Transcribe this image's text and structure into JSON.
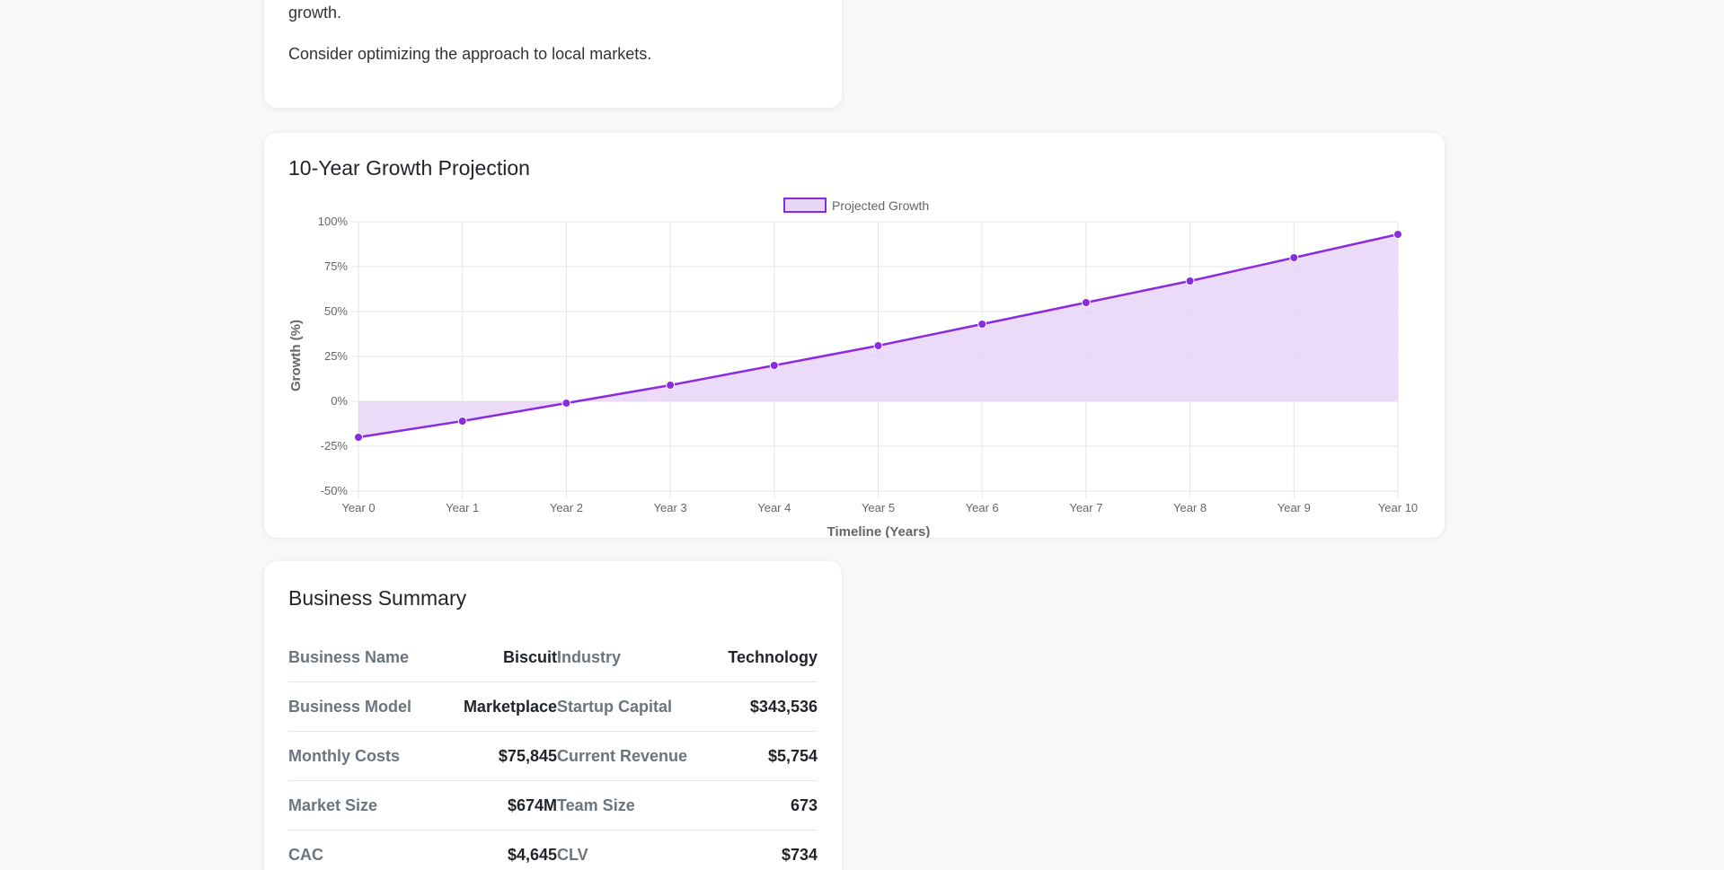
{
  "insight_card": {
    "line1": "growth.",
    "line2": "Consider optimizing the approach to local markets."
  },
  "chart_card": {
    "title": "10-Year Growth Projection"
  },
  "chart_data": {
    "type": "line",
    "title": "10-Year Growth Projection",
    "xlabel": "Timeline (Years)",
    "ylabel": "Growth (%)",
    "categories": [
      "Year 0",
      "Year 1",
      "Year 2",
      "Year 3",
      "Year 4",
      "Year 5",
      "Year 6",
      "Year 7",
      "Year 8",
      "Year 9",
      "Year 10"
    ],
    "series": [
      {
        "name": "Projected Growth",
        "values": [
          -20,
          -11,
          -1,
          9,
          20,
          31,
          43,
          55,
          67,
          80,
          93
        ]
      }
    ],
    "ylim": [
      -50,
      100
    ],
    "yticks": [
      100,
      75,
      50,
      25,
      0,
      -25,
      -50
    ],
    "ytick_labels": [
      "100%",
      "75%",
      "50%",
      "25%",
      "0%",
      "-25%",
      "-50%"
    ],
    "fill": "origin",
    "grid": true,
    "legend": "top-center",
    "colors": {
      "line": "#8a2be2",
      "fill": "#e9d5f7",
      "grid": "#e5e5e5"
    }
  },
  "summary": {
    "title": "Business Summary",
    "rows": [
      [
        {
          "label": "Business Name",
          "value": "Biscuit"
        },
        {
          "label": "Industry",
          "value": "Technology"
        }
      ],
      [
        {
          "label": "Business Model",
          "value": "Marketplace"
        },
        {
          "label": "Startup Capital",
          "value": "$343,536"
        }
      ],
      [
        {
          "label": "Monthly Costs",
          "value": "$75,845"
        },
        {
          "label": "Current Revenue",
          "value": "$5,754"
        }
      ],
      [
        {
          "label": "Market Size",
          "value": "$674M"
        },
        {
          "label": "Team Size",
          "value": "673"
        }
      ],
      [
        {
          "label": "CAC",
          "value": "$4,645"
        },
        {
          "label": "CLV",
          "value": "$734"
        }
      ]
    ]
  }
}
